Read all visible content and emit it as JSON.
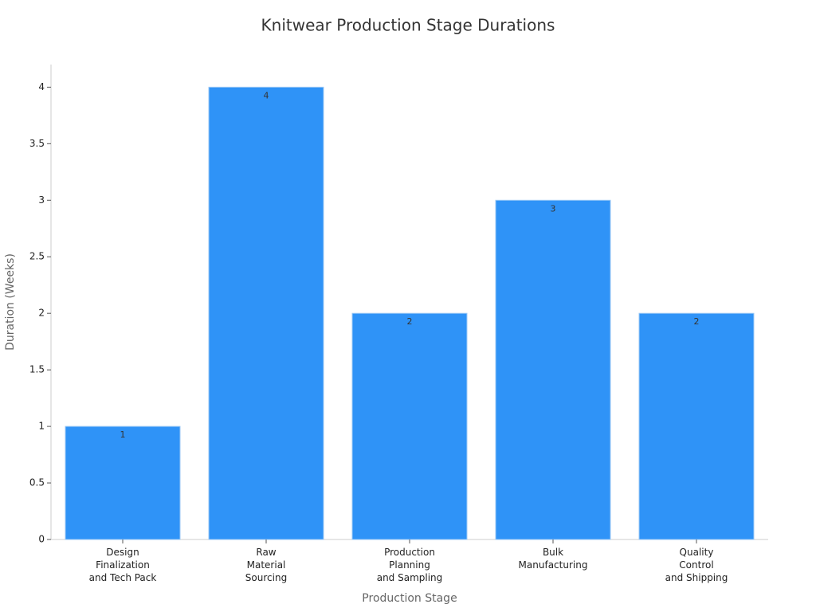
{
  "chart_data": {
    "type": "bar",
    "title": "Knitwear Production Stage Durations",
    "x_label": "Production Stage",
    "y_label": "Duration (Weeks)",
    "categories": [
      "Design\nFinalization\nand Tech Pack",
      "Raw\nMaterial\nSourcing",
      "Production\nPlanning\nand Sampling",
      "Bulk\nManufacturing",
      "Quality\nControl\nand Shipping"
    ],
    "values": [
      1,
      4,
      2,
      3,
      2
    ],
    "color": "#2f93f7",
    "ylim": [
      0,
      4.2
    ],
    "yticks": [
      0,
      0.5,
      1,
      1.5,
      2,
      2.5,
      3,
      3.5,
      4
    ],
    "grid": false
  }
}
